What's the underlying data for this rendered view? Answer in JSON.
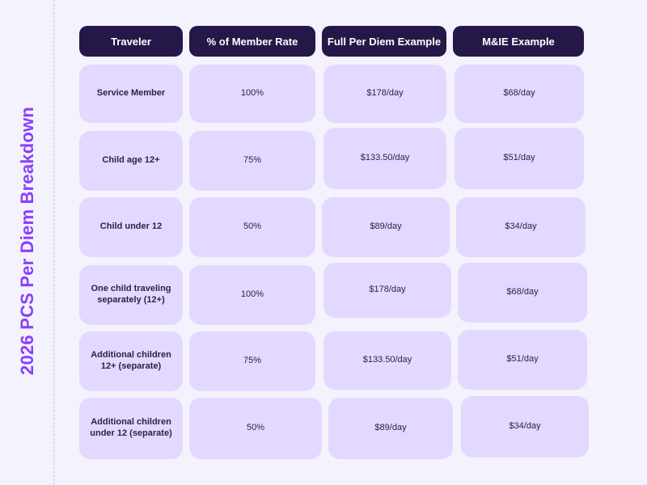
{
  "title": "2026 PCS Per Diem Breakdown",
  "headers": [
    "Traveler",
    "% of Member Rate",
    "Full Per Diem Example",
    "M&IE Example"
  ],
  "rows": [
    {
      "traveler": "Service Member",
      "rate": "100%",
      "full": "$178/day",
      "mie": "$68/day"
    },
    {
      "traveler": "Child age 12+",
      "rate": "75%",
      "full": "$133.50/day",
      "mie": "$51/day"
    },
    {
      "traveler": "Child under 12",
      "rate": "50%",
      "full": "$89/day",
      "mie": "$34/day"
    },
    {
      "traveler": "One child traveling separately (12+)",
      "rate": "100%",
      "full": "$178/day",
      "mie": "$68/day"
    },
    {
      "traveler": "Additional children 12+ (separate)",
      "rate": "75%",
      "full": "$133.50/day",
      "mie": "$51/day"
    },
    {
      "traveler": "Additional children under 12 (separate)",
      "rate": "50%",
      "full": "$89/day",
      "mie": "$34/day"
    }
  ]
}
